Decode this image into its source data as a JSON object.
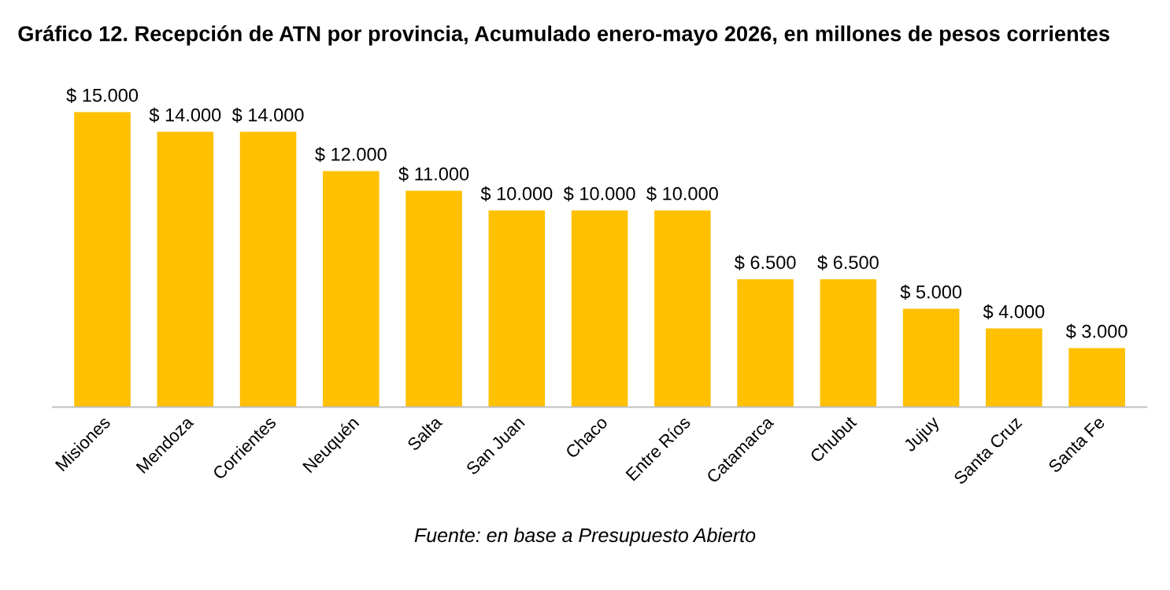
{
  "chart_data": {
    "type": "bar",
    "title": "Gráfico 12. Recepción de ATN por provincia, Acumulado enero-mayo 2026, en millones de pesos corrientes",
    "categories": [
      "Misiones",
      "Mendoza",
      "Corrientes",
      "Neuquén",
      "Salta",
      "San Juan",
      "Chaco",
      "Entre Ríos",
      "Catamarca",
      "Chubut",
      "Jujuy",
      "Santa Cruz",
      "Santa Fe"
    ],
    "values": [
      15000,
      14000,
      14000,
      12000,
      11000,
      10000,
      10000,
      10000,
      6500,
      6500,
      5000,
      4000,
      3000
    ],
    "value_labels": [
      "$ 15.000",
      "$ 14.000",
      "$ 14.000",
      "$ 12.000",
      "$ 11.000",
      "$ 10.000",
      "$ 10.000",
      "$ 10.000",
      "$ 6.500",
      "$ 6.500",
      "$ 5.000",
      "$ 4.000",
      "$ 3.000"
    ],
    "color": "#ffc000",
    "annotations": [
      "Fuente: en base a Presupuesto Abierto"
    ]
  }
}
